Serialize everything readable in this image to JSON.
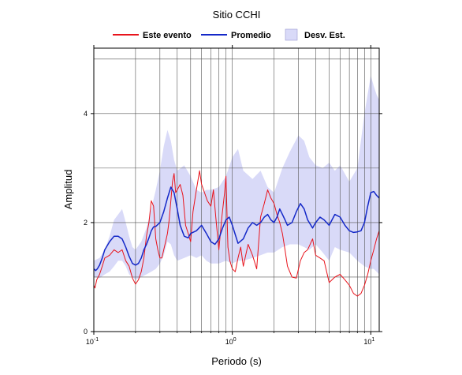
{
  "chart_data": {
    "type": "line",
    "title": "Sitio CCHI",
    "xlabel": "Periodo (s)",
    "ylabel": "Amplitud",
    "x_scale": "log",
    "xlim": [
      0.1,
      11.5
    ],
    "ylim": [
      0,
      5.2
    ],
    "x_ticks": [
      {
        "value": 0.1,
        "base": "10",
        "exp": "-1"
      },
      {
        "value": 1,
        "base": "10",
        "exp": "0"
      },
      {
        "value": 10,
        "base": "10",
        "exp": "1"
      }
    ],
    "y_ticks": [
      {
        "value": 0,
        "label": "0"
      },
      {
        "value": 2,
        "label": "2"
      },
      {
        "value": 4,
        "label": "4"
      }
    ],
    "y_grid": [
      1,
      2,
      3,
      4,
      5
    ],
    "grid": true,
    "legend_position": "top",
    "legend": [
      {
        "key": "event",
        "label": "Este evento",
        "color": "#e8141c",
        "kind": "line"
      },
      {
        "key": "mean",
        "label": "Promedio",
        "color": "#1428c8",
        "kind": "line"
      },
      {
        "key": "std",
        "label": "Desv. Est.",
        "color": "#d9daf8",
        "kind": "area"
      }
    ],
    "series": [
      {
        "key": "event",
        "color": "#e8141c",
        "x": [
          0.1,
          0.102,
          0.105,
          0.11,
          0.115,
          0.12,
          0.13,
          0.14,
          0.15,
          0.16,
          0.17,
          0.18,
          0.19,
          0.2,
          0.21,
          0.22,
          0.23,
          0.24,
          0.25,
          0.26,
          0.27,
          0.28,
          0.29,
          0.3,
          0.31,
          0.32,
          0.33,
          0.34,
          0.35,
          0.36,
          0.37,
          0.38,
          0.39,
          0.4,
          0.42,
          0.44,
          0.46,
          0.48,
          0.5,
          0.52,
          0.55,
          0.58,
          0.6,
          0.63,
          0.66,
          0.7,
          0.73,
          0.76,
          0.8,
          0.84,
          0.88,
          0.9,
          0.93,
          0.96,
          1.0,
          1.05,
          1.1,
          1.15,
          1.2,
          1.3,
          1.4,
          1.5,
          1.6,
          1.7,
          1.8,
          1.9,
          2.0,
          2.1,
          2.2,
          2.3,
          2.4,
          2.5,
          2.7,
          2.9,
          3.1,
          3.3,
          3.5,
          3.8,
          4.0,
          4.3,
          4.6,
          5.0,
          5.5,
          6.0,
          6.5,
          7.0,
          7.5,
          8.0,
          8.5,
          9.0,
          9.5,
          10.0,
          10.5,
          11.0,
          11.5
        ],
        "y": [
          0.85,
          0.8,
          0.95,
          1.05,
          1.2,
          1.35,
          1.4,
          1.5,
          1.45,
          1.5,
          1.3,
          1.2,
          0.98,
          0.87,
          0.95,
          1.1,
          1.35,
          1.75,
          2.0,
          2.4,
          2.3,
          1.7,
          1.5,
          1.35,
          1.35,
          1.5,
          1.65,
          1.8,
          2.05,
          2.4,
          2.75,
          2.9,
          2.55,
          2.6,
          2.7,
          2.5,
          1.95,
          1.8,
          1.65,
          2.2,
          2.6,
          2.95,
          2.7,
          2.55,
          2.4,
          2.3,
          2.6,
          2.1,
          1.5,
          2.1,
          2.55,
          2.85,
          1.55,
          1.3,
          1.15,
          1.1,
          1.35,
          1.55,
          1.2,
          1.6,
          1.4,
          1.15,
          2.1,
          2.35,
          2.6,
          2.45,
          2.35,
          2.15,
          2.0,
          1.8,
          1.5,
          1.2,
          1.0,
          0.98,
          1.3,
          1.45,
          1.5,
          1.7,
          1.4,
          1.35,
          1.3,
          0.9,
          1.0,
          1.05,
          0.95,
          0.85,
          0.7,
          0.65,
          0.7,
          0.85,
          1.05,
          1.3,
          1.5,
          1.7,
          1.85
        ]
      },
      {
        "key": "mean",
        "color": "#1428c8",
        "x": [
          0.1,
          0.103,
          0.106,
          0.11,
          0.115,
          0.12,
          0.13,
          0.14,
          0.15,
          0.16,
          0.17,
          0.18,
          0.19,
          0.2,
          0.21,
          0.22,
          0.23,
          0.24,
          0.25,
          0.26,
          0.27,
          0.28,
          0.3,
          0.32,
          0.34,
          0.36,
          0.38,
          0.4,
          0.42,
          0.45,
          0.48,
          0.5,
          0.55,
          0.6,
          0.65,
          0.7,
          0.75,
          0.8,
          0.85,
          0.9,
          0.95,
          1.0,
          1.05,
          1.1,
          1.2,
          1.3,
          1.4,
          1.5,
          1.6,
          1.7,
          1.8,
          1.9,
          2.0,
          2.1,
          2.2,
          2.3,
          2.4,
          2.5,
          2.7,
          2.9,
          3.1,
          3.3,
          3.5,
          3.8,
          4.0,
          4.3,
          4.6,
          5.0,
          5.5,
          6.0,
          6.5,
          7.0,
          7.5,
          8.0,
          8.5,
          9.0,
          9.5,
          10.0,
          10.5,
          11.0,
          11.5
        ],
        "y": [
          1.15,
          1.12,
          1.15,
          1.22,
          1.35,
          1.5,
          1.65,
          1.75,
          1.75,
          1.7,
          1.55,
          1.38,
          1.25,
          1.22,
          1.25,
          1.35,
          1.5,
          1.6,
          1.72,
          1.85,
          1.92,
          1.93,
          2.0,
          2.2,
          2.45,
          2.65,
          2.55,
          2.25,
          1.95,
          1.75,
          1.72,
          1.8,
          1.85,
          1.95,
          1.8,
          1.65,
          1.6,
          1.7,
          1.9,
          2.05,
          2.1,
          1.95,
          1.78,
          1.62,
          1.7,
          1.9,
          2.0,
          1.95,
          2.0,
          2.1,
          2.15,
          2.05,
          2.0,
          2.1,
          2.25,
          2.15,
          2.05,
          1.95,
          2.0,
          2.2,
          2.35,
          2.25,
          2.05,
          1.9,
          2.0,
          2.1,
          2.05,
          1.95,
          2.15,
          2.1,
          1.95,
          1.85,
          1.82,
          1.83,
          1.85,
          2.0,
          2.3,
          2.55,
          2.57,
          2.5,
          2.45
        ]
      }
    ],
    "band": {
      "key": "std",
      "color": "#d9daf8",
      "x": [
        0.1,
        0.11,
        0.12,
        0.13,
        0.14,
        0.15,
        0.16,
        0.17,
        0.18,
        0.19,
        0.2,
        0.22,
        0.24,
        0.26,
        0.28,
        0.3,
        0.32,
        0.34,
        0.36,
        0.38,
        0.4,
        0.45,
        0.5,
        0.55,
        0.6,
        0.65,
        0.7,
        0.8,
        0.9,
        1.0,
        1.1,
        1.2,
        1.4,
        1.6,
        1.8,
        2.0,
        2.3,
        2.6,
        3.0,
        3.3,
        3.6,
        4.0,
        4.5,
        5.0,
        5.5,
        6.0,
        7.0,
        8.0,
        9.0,
        10.0,
        10.5,
        11.0,
        11.5
      ],
      "upper": [
        1.3,
        1.35,
        1.5,
        1.75,
        2.05,
        2.15,
        2.25,
        2.0,
        1.75,
        1.55,
        1.5,
        1.65,
        1.9,
        2.25,
        2.6,
        2.95,
        3.4,
        3.7,
        3.5,
        3.15,
        2.95,
        3.05,
        2.85,
        2.6,
        2.55,
        2.6,
        2.6,
        2.65,
        2.85,
        3.2,
        3.35,
        2.95,
        2.8,
        2.95,
        2.65,
        2.55,
        3.0,
        3.3,
        3.6,
        3.5,
        3.2,
        3.05,
        3.0,
        3.1,
        2.95,
        3.05,
        2.75,
        3.0,
        4.0,
        4.7,
        4.5,
        4.35,
        4.25
      ],
      "lower": [
        1.0,
        0.98,
        1.05,
        1.1,
        1.2,
        1.3,
        1.3,
        1.2,
        1.05,
        1.0,
        0.95,
        1.0,
        1.05,
        1.1,
        1.15,
        1.25,
        1.4,
        1.65,
        1.6,
        1.4,
        1.3,
        1.35,
        1.4,
        1.35,
        1.4,
        1.3,
        1.25,
        1.25,
        1.3,
        1.25,
        1.3,
        1.3,
        1.35,
        1.4,
        1.45,
        1.45,
        1.55,
        1.6,
        1.6,
        1.55,
        1.5,
        1.6,
        1.45,
        1.3,
        1.55,
        1.5,
        1.45,
        1.3,
        1.2,
        1.15,
        1.15,
        1.1,
        1.05
      ]
    }
  }
}
